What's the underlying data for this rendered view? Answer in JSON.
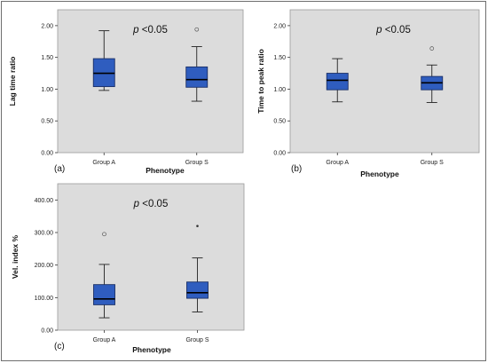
{
  "chart_data": [
    {
      "type": "boxplot",
      "panel_label": "(a)",
      "ylabel": "Lag time ratio",
      "xlabel": "Phenotype",
      "annotation_italic": "p",
      "annotation_rest": " <0.05",
      "ylim": [
        0,
        2.25
      ],
      "yticks": [
        0,
        0.5,
        1.0,
        1.5,
        2.0
      ],
      "ytick_labels": [
        "0.00",
        "0.50",
        "1.00",
        "1.50",
        "2.00"
      ],
      "categories": [
        "Group A",
        "Group S"
      ],
      "boxes": [
        {
          "category": "Group A",
          "whisker_low": 0.98,
          "q1": 1.04,
          "median": 1.25,
          "q3": 1.48,
          "whisker_high": 1.92,
          "outliers": []
        },
        {
          "category": "Group S",
          "whisker_low": 0.81,
          "q1": 1.03,
          "median": 1.15,
          "q3": 1.35,
          "whisker_high": 1.67,
          "outliers": [
            {
              "value": 1.94,
              "marker": "circle"
            }
          ]
        }
      ]
    },
    {
      "type": "boxplot",
      "panel_label": "(b)",
      "ylabel": "Time to peak ratio",
      "xlabel": "Phenotype",
      "annotation_italic": "p",
      "annotation_rest": " <0.05",
      "ylim": [
        0,
        2.25
      ],
      "yticks": [
        0,
        0.5,
        1.0,
        1.5,
        2.0
      ],
      "ytick_labels": [
        "0.00",
        "0.50",
        "1.00",
        "1.50",
        "2.00"
      ],
      "categories": [
        "Group A",
        "Group S"
      ],
      "boxes": [
        {
          "category": "Group A",
          "whisker_low": 0.8,
          "q1": 0.99,
          "median": 1.14,
          "q3": 1.25,
          "whisker_high": 1.48,
          "outliers": []
        },
        {
          "category": "Group S",
          "whisker_low": 0.79,
          "q1": 0.99,
          "median": 1.1,
          "q3": 1.2,
          "whisker_high": 1.38,
          "outliers": [
            {
              "value": 1.64,
              "marker": "circle"
            }
          ]
        }
      ]
    },
    {
      "type": "boxplot",
      "panel_label": "(c)",
      "ylabel": "Vel. index %",
      "xlabel": "Phenotype",
      "annotation_italic": "p",
      "annotation_rest": " <0.05",
      "ylim": [
        0,
        450
      ],
      "yticks": [
        0,
        100,
        200,
        300,
        400
      ],
      "ytick_labels": [
        "0.00",
        "100.00",
        "200.00",
        "300.00",
        "400.00"
      ],
      "categories": [
        "Group A",
        "Group S"
      ],
      "boxes": [
        {
          "category": "Group A",
          "whisker_low": 38,
          "q1": 78,
          "median": 96,
          "q3": 140,
          "whisker_high": 202,
          "outliers": [
            {
              "value": 295,
              "marker": "circle"
            }
          ]
        },
        {
          "category": "Group S",
          "whisker_low": 56,
          "q1": 98,
          "median": 115,
          "q3": 148,
          "whisker_high": 222,
          "outliers": [
            {
              "value": 320,
              "marker": "star"
            }
          ]
        }
      ]
    }
  ],
  "colors": {
    "plot_bg": "#dcdcdc",
    "box_fill": "#2f5dbf",
    "box_stroke": "#1a2f66",
    "axis": "#333333",
    "frame": "#6e6e6e"
  }
}
